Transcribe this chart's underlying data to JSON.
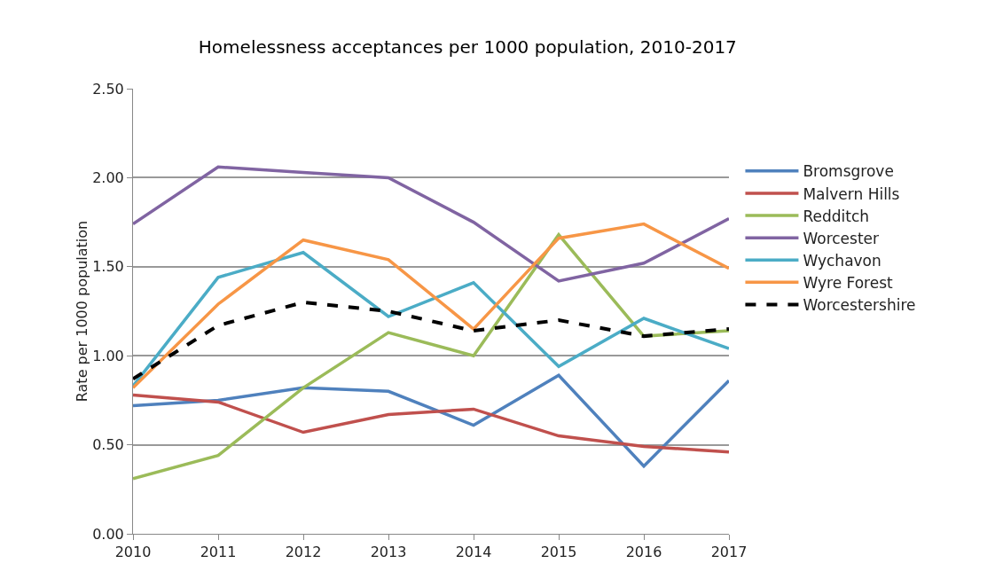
{
  "chart_data": {
    "type": "line",
    "title": "Homelessness acceptances per 1000 population, 2010-2017",
    "ylabel": "Rate per 1000 population",
    "categories": [
      "2010",
      "2011",
      "2012",
      "2013",
      "2014",
      "2015",
      "2016",
      "2017"
    ],
    "ylim": [
      0,
      2.5
    ],
    "yticks": [
      {
        "value": 0,
        "label": "0.00"
      },
      {
        "value": 0.5,
        "label": "0.50"
      },
      {
        "value": 1,
        "label": "1.00"
      },
      {
        "value": 1.5,
        "label": "1.50"
      },
      {
        "value": 2,
        "label": "2.00"
      },
      {
        "value": 2.5,
        "label": "2.50"
      }
    ],
    "grid": "y",
    "legend": "right",
    "marker": "none",
    "series": [
      {
        "name": "Bromsgrove",
        "color": "#4f81bd",
        "values": [
          0.72,
          0.75,
          0.82,
          0.8,
          0.61,
          0.89,
          0.38,
          0.86
        ]
      },
      {
        "name": "Malvern Hills",
        "color": "#c0504d",
        "values": [
          0.78,
          0.74,
          0.57,
          0.67,
          0.7,
          0.55,
          0.49,
          0.46
        ]
      },
      {
        "name": "Redditch",
        "color": "#9bbb59",
        "values": [
          0.31,
          0.44,
          0.82,
          1.13,
          1.0,
          1.68,
          1.11,
          1.14
        ]
      },
      {
        "name": "Worcester",
        "color": "#8064a2",
        "values": [
          1.74,
          2.06,
          2.03,
          2.0,
          1.75,
          1.42,
          1.52,
          1.77
        ]
      },
      {
        "name": "Wychavon",
        "color": "#4bacc6",
        "values": [
          0.83,
          1.44,
          1.58,
          1.22,
          1.41,
          0.94,
          1.21,
          1.04
        ]
      },
      {
        "name": "Wyre Forest",
        "color": "#f79646",
        "values": [
          0.82,
          1.29,
          1.65,
          1.54,
          1.15,
          1.66,
          1.74,
          1.49
        ]
      },
      {
        "name": "Worcestershire",
        "color": "#000000",
        "line_style": "dashed",
        "values": [
          0.87,
          1.17,
          1.3,
          1.25,
          1.14,
          1.2,
          1.11,
          1.15
        ]
      }
    ]
  }
}
